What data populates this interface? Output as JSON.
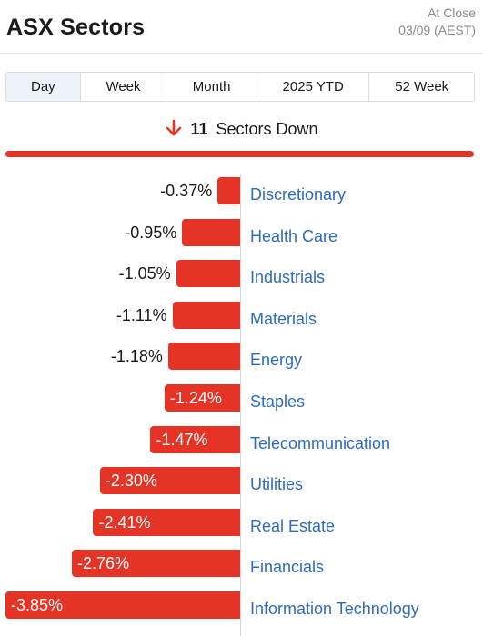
{
  "header": {
    "title": "ASX Sectors",
    "status": "At Close",
    "timestamp": "03/09 (AEST)"
  },
  "tabs": [
    {
      "label": "Day",
      "active": true
    },
    {
      "label": "Week",
      "active": false
    },
    {
      "label": "Month",
      "active": false
    },
    {
      "label": "2025 YTD",
      "active": false
    },
    {
      "label": "52 Week",
      "active": false
    }
  ],
  "summary": {
    "icon": "arrow-down-icon",
    "count": "11",
    "text": "Sectors Down"
  },
  "colors": {
    "down": "#e53325",
    "link": "#2f6bbd",
    "active_tab": "#edf3f9"
  },
  "chart_data": {
    "type": "bar",
    "orientation": "horizontal",
    "unit": "%",
    "xlim": [
      -3.85,
      0
    ],
    "categories": [
      "Discretionary",
      "Health Care",
      "Industrials",
      "Materials",
      "Energy",
      "Staples",
      "Telecommunication",
      "Utilities",
      "Real Estate",
      "Financials",
      "Information Technology"
    ],
    "values": [
      -0.37,
      -0.95,
      -1.05,
      -1.11,
      -1.18,
      -1.24,
      -1.47,
      -2.3,
      -2.41,
      -2.76,
      -3.85
    ],
    "labels": [
      "-0.37%",
      "-0.95%",
      "-1.05%",
      "-1.11%",
      "-1.18%",
      "-1.24%",
      "-1.47%",
      "-2.30%",
      "-2.41%",
      "-2.76%",
      "-3.85%"
    ]
  }
}
